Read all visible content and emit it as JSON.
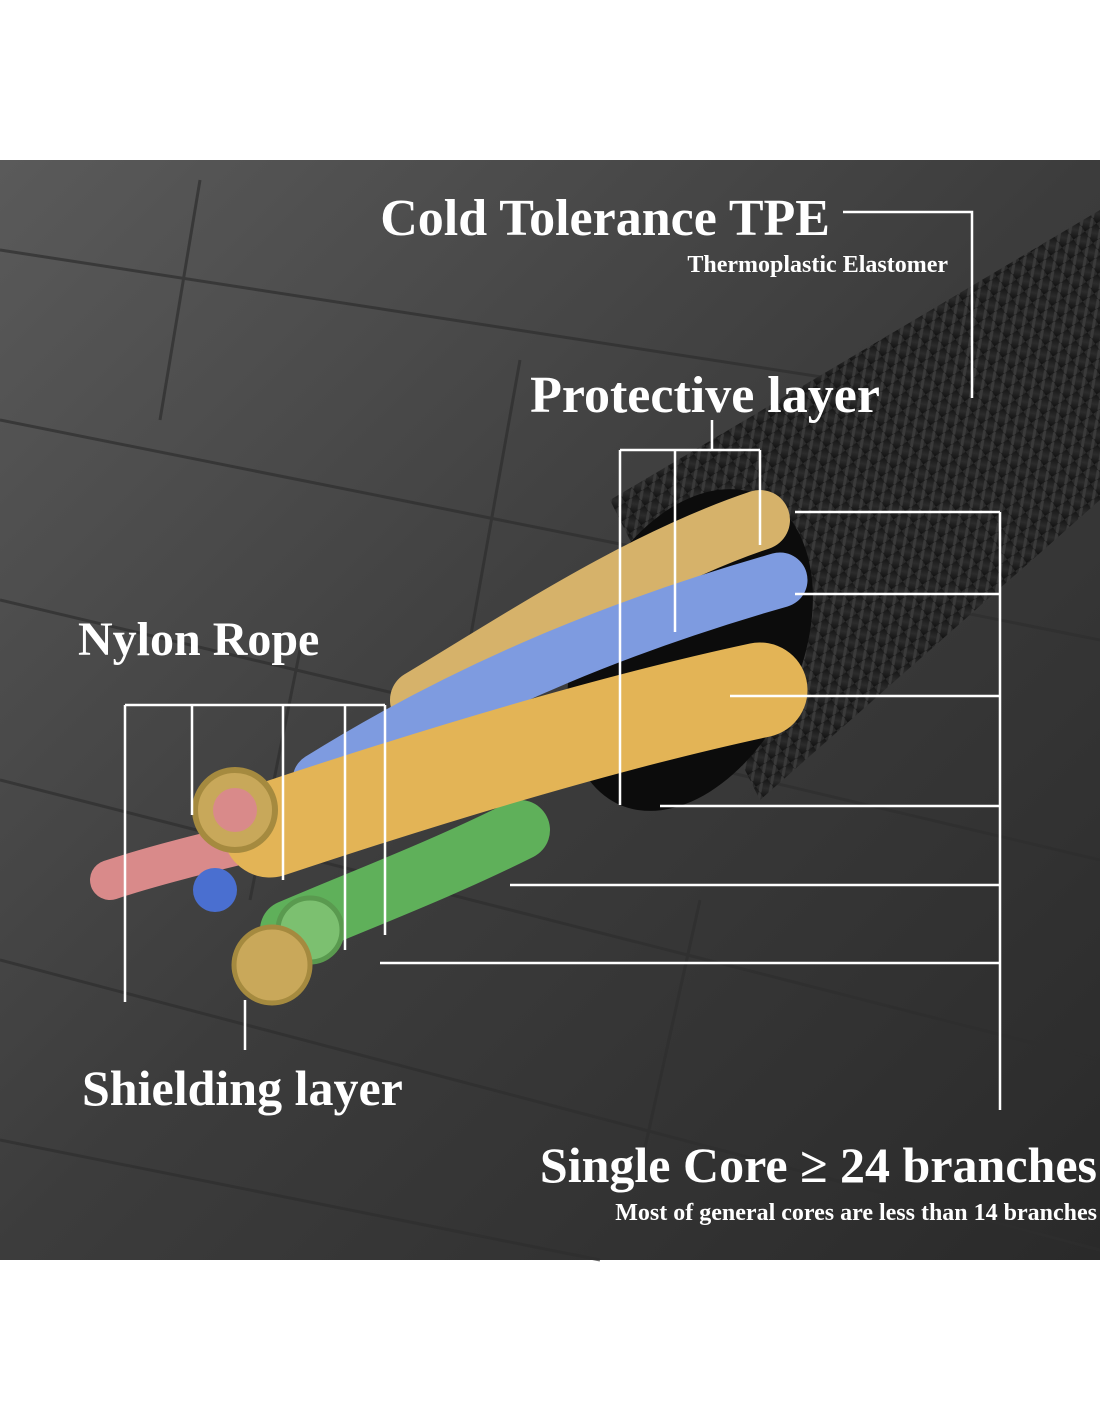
{
  "callouts": [
    {
      "title": "Cold Tolerance TPE",
      "subtitle": "Thermoplastic Elastomer"
    },
    {
      "title": "Protective layer"
    },
    {
      "title": "Nylon Rope"
    },
    {
      "title": "Shielding layer"
    },
    {
      "title": "Single Core ≥ 24 branches",
      "subtitle": "Most of general cores are less than 14 branches"
    }
  ]
}
